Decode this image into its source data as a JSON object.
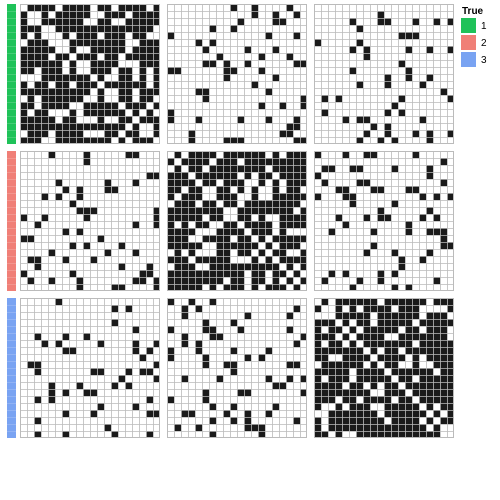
{
  "chart_data": {
    "type": "heatmap",
    "title": "",
    "xlabel": "",
    "ylabel": "",
    "grid": true,
    "cell_colors": {
      "0": "#ffffff",
      "1": "#1a1a1a"
    },
    "gridline_color": "#bbbbbb",
    "block_border_color": "#bbbbbb",
    "n_per_block": 20,
    "groups": [
      "1",
      "1",
      "1",
      "1",
      "1",
      "1",
      "1",
      "1",
      "1",
      "1",
      "1",
      "1",
      "1",
      "1",
      "1",
      "1",
      "1",
      "1",
      "1",
      "1",
      "2",
      "2",
      "2",
      "2",
      "2",
      "2",
      "2",
      "2",
      "2",
      "2",
      "2",
      "2",
      "2",
      "2",
      "2",
      "2",
      "2",
      "2",
      "2",
      "2",
      "3",
      "3",
      "3",
      "3",
      "3",
      "3",
      "3",
      "3",
      "3",
      "3",
      "3",
      "3",
      "3",
      "3",
      "3",
      "3",
      "3",
      "3",
      "3",
      "3"
    ],
    "legend": {
      "title": "True",
      "position": "top-right",
      "entries": [
        {
          "label": "1",
          "color": "#1fc259"
        },
        {
          "label": "2",
          "color": "#f07f77"
        },
        {
          "label": "3",
          "color": "#79a3f2"
        }
      ]
    },
    "block_density": [
      [
        0.75,
        0.15,
        0.16
      ],
      [
        0.15,
        0.72,
        0.16
      ],
      [
        0.16,
        0.15,
        0.78
      ]
    ],
    "seed": 12345
  }
}
